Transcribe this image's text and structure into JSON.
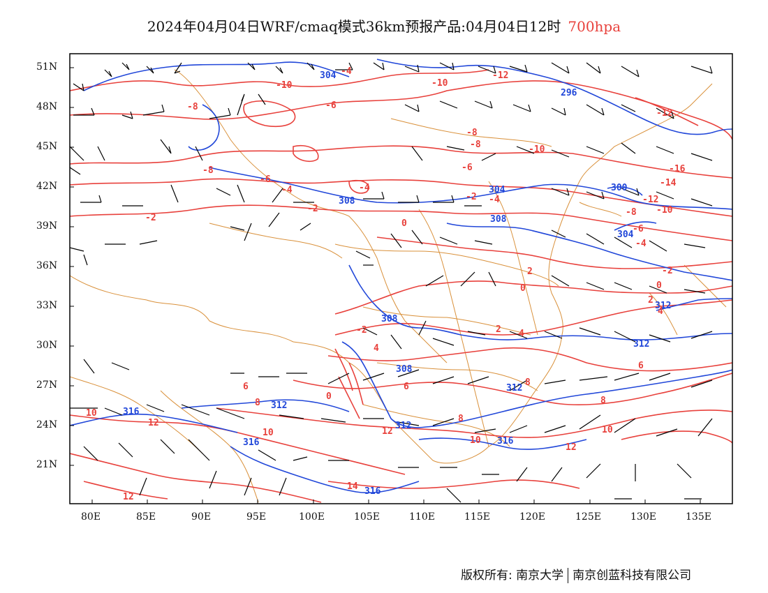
{
  "title": {
    "text": "2024年04月04日WRF/cmaq模式36km预报产品:04月04日12时",
    "level": "700hpa",
    "level_color": "#e8413c"
  },
  "axes": {
    "lat_labels": [
      "51N",
      "48N",
      "45N",
      "42N",
      "39N",
      "36N",
      "33N",
      "30N",
      "27N",
      "24N",
      "21N"
    ],
    "lon_labels": [
      "80E",
      "85E",
      "90E",
      "95E",
      "100E",
      "105E",
      "110E",
      "115E",
      "120E",
      "125E",
      "130E",
      "135E"
    ]
  },
  "colors": {
    "temperature_contour": "#e8413c",
    "height_contour": "#2147d9",
    "boundary": "#d9903a",
    "wind_barb": "#000000"
  },
  "temperature_labels": [
    "-12",
    "-10",
    "-8",
    "-6",
    "-4",
    "-2",
    "0",
    "2",
    "4",
    "6",
    "8",
    "10",
    "12",
    "14",
    "-14",
    "-16"
  ],
  "height_labels": [
    "296",
    "300",
    "304",
    "308",
    "312",
    "316"
  ],
  "footer": {
    "left": "版权所有: 南京大学",
    "right": "南京创蓝科技有限公司"
  }
}
